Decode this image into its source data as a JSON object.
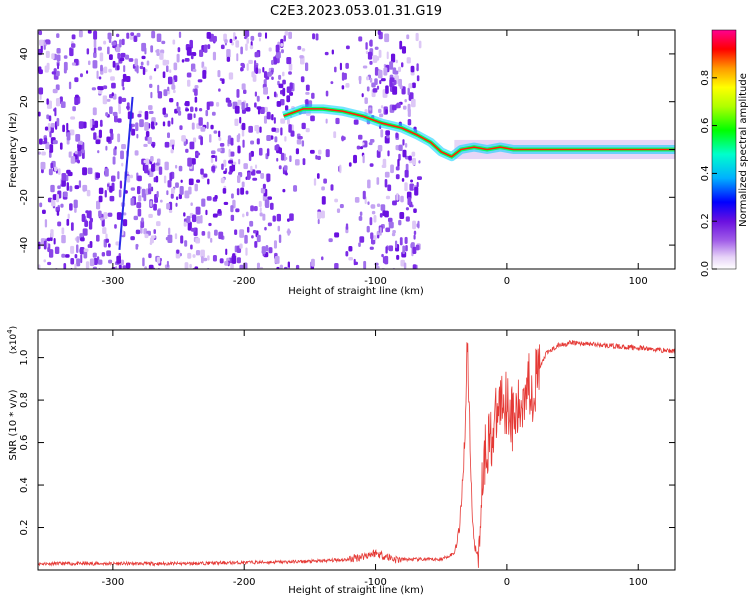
{
  "title": "C2E3.2023.053.01.31.G19",
  "colors": {
    "snr_line": "#e53935",
    "axis": "#000000"
  },
  "chart_data": [
    {
      "type": "heatmap",
      "xlabel": "Height of straight line (km)",
      "ylabel": "Frequency (Hz)",
      "xlim": [
        -357,
        128
      ],
      "ylim": [
        -50,
        50
      ],
      "xticks": [
        -300,
        -200,
        -100,
        0,
        100
      ],
      "yticks": [
        -40,
        -20,
        0,
        20,
        40
      ],
      "grid": false,
      "colorbar": {
        "label": "Normalized spectral amplitude",
        "range": [
          0,
          1
        ],
        "ticks": [
          0.0,
          0.2,
          0.4,
          0.6,
          0.8
        ]
      },
      "signal_trace": [
        [
          -170,
          14
        ],
        [
          -155,
          17
        ],
        [
          -140,
          17
        ],
        [
          -125,
          16
        ],
        [
          -110,
          14
        ],
        [
          -95,
          11
        ],
        [
          -80,
          9
        ],
        [
          -68,
          6
        ],
        [
          -58,
          3
        ],
        [
          -50,
          -1
        ],
        [
          -42,
          -3
        ],
        [
          -35,
          0
        ],
        [
          -25,
          1
        ],
        [
          -15,
          0
        ],
        [
          -5,
          1
        ],
        [
          5,
          0
        ],
        [
          128,
          0
        ]
      ]
    },
    {
      "type": "line",
      "xlabel": "Height of straight line (km)",
      "ylabel": "SNR (10 * v/v)",
      "y_multiplier": "(x10",
      "y_multiplier_exp": "4",
      "y_multiplier_close": ")",
      "xlim": [
        -357,
        128
      ],
      "ylim": [
        0,
        1.13
      ],
      "xticks": [
        -300,
        -200,
        -100,
        0,
        100
      ],
      "yticks": [
        0.2,
        0.4,
        0.6,
        0.8,
        1.0
      ],
      "grid": false,
      "series": [
        {
          "x": [
            -357,
            -300,
            -250,
            -200,
            -150,
            -120,
            -100,
            -85,
            -70,
            -50,
            -40,
            -36,
            -33,
            -31,
            -30,
            -28,
            -26,
            -24,
            -22,
            -20,
            -18,
            -15,
            -10,
            -5,
            0,
            5,
            10,
            15,
            20,
            25,
            30,
            40,
            50,
            70,
            90,
            110,
            128
          ],
          "y": [
            0.03,
            0.03,
            0.03,
            0.035,
            0.04,
            0.05,
            0.08,
            0.05,
            0.05,
            0.05,
            0.08,
            0.2,
            0.5,
            0.8,
            1.12,
            0.6,
            0.2,
            0.1,
            0.06,
            0.3,
            0.5,
            0.6,
            0.65,
            0.8,
            0.8,
            0.7,
            0.75,
            0.9,
            0.85,
            0.95,
            1.02,
            1.06,
            1.07,
            1.06,
            1.05,
            1.04,
            1.03
          ]
        }
      ]
    }
  ]
}
